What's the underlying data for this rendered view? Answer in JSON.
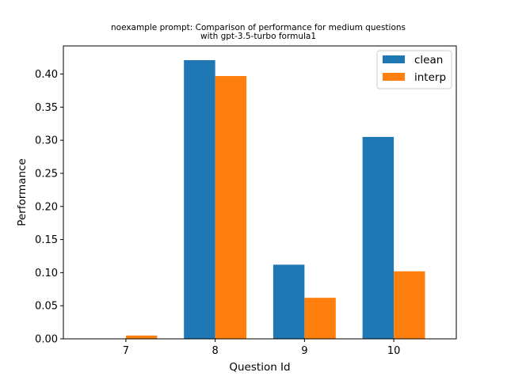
{
  "chart_data": {
    "type": "bar",
    "title_line1": "noexample prompt: Comparison of performance for medium questions",
    "title_line2": "with gpt-3.5-turbo formula1",
    "xlabel": "Question Id",
    "ylabel": "Performance",
    "categories": [
      "7",
      "8",
      "9",
      "10"
    ],
    "series": [
      {
        "name": "clean",
        "color": "#1f77b4",
        "values": [
          0.0,
          0.421,
          0.112,
          0.305
        ]
      },
      {
        "name": "interp",
        "color": "#ff7f0e",
        "values": [
          0.005,
          0.397,
          0.062,
          0.102
        ]
      }
    ],
    "yticks": [
      "0.00",
      "0.05",
      "0.10",
      "0.15",
      "0.20",
      "0.25",
      "0.30",
      "0.35",
      "0.40"
    ],
    "ylim": [
      0,
      0.4425
    ],
    "grid": false,
    "legend_position": "top-right"
  }
}
